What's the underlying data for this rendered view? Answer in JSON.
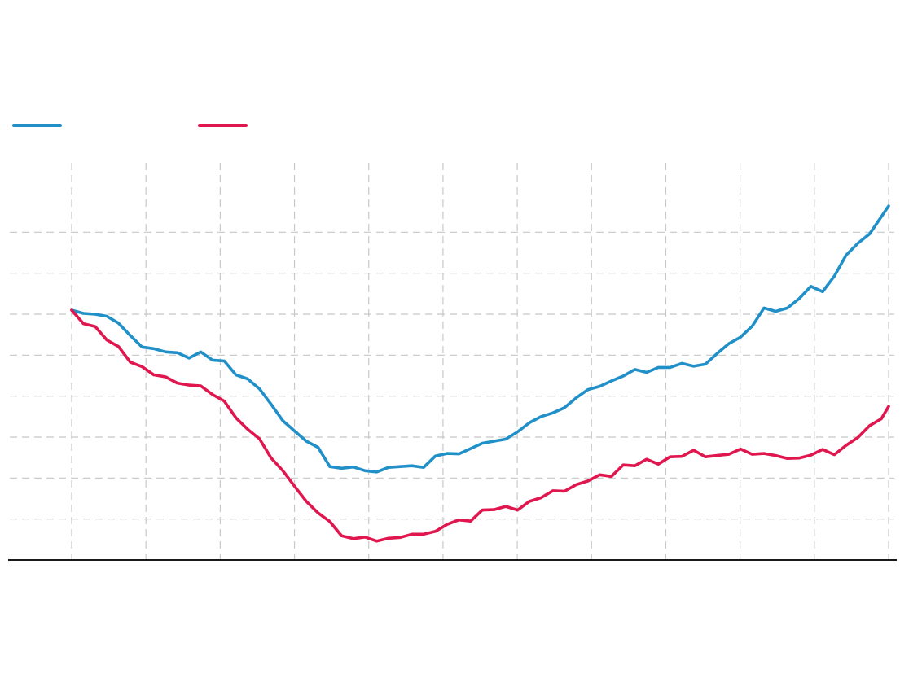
{
  "chart_data": {
    "type": "line",
    "title": "",
    "xlabel": "",
    "ylabel": "",
    "grid": true,
    "legend_position": "top-left",
    "xlim": [
      0,
      11
    ],
    "ylim": [
      10,
      100
    ],
    "x": [
      0.0,
      0.158,
      0.316,
      0.474,
      0.632,
      0.79,
      0.948,
      1.106,
      1.264,
      1.422,
      1.58,
      1.738,
      1.896,
      2.054,
      2.212,
      2.37,
      2.528,
      2.686,
      2.844,
      3.002,
      3.16,
      3.318,
      3.476,
      3.634,
      3.792,
      3.95,
      4.108,
      4.266,
      4.424,
      4.582,
      4.74,
      4.898,
      5.056,
      5.214,
      5.372,
      5.53,
      5.688,
      5.846,
      6.004,
      6.162,
      6.32,
      6.478,
      6.636,
      6.794,
      6.952,
      7.11,
      7.268,
      7.426,
      7.584,
      7.742,
      7.9,
      8.058,
      8.216,
      8.374,
      8.532,
      8.69,
      8.848,
      9.006,
      9.164,
      9.322,
      9.48,
      9.638,
      9.796,
      9.954,
      10.112,
      10.27,
      10.428,
      10.586,
      10.744,
      10.902,
      11.0
    ],
    "series": [
      {
        "color": "#2190c8",
        "values": [
          71,
          70.2,
          70,
          69.5,
          67.8,
          64.8,
          62,
          61.6,
          60.8,
          60.6,
          59.3,
          60.8,
          58.8,
          58.6,
          55.2,
          54.2,
          51.8,
          48,
          44,
          41.5,
          39,
          37.5,
          32.8,
          32.4,
          32.7,
          31.8,
          31.5,
          32.6,
          32.8,
          33,
          32.6,
          35.4,
          36,
          35.9,
          37.2,
          38.5,
          39,
          39.5,
          41.3,
          43.5,
          45,
          45.9,
          47.2,
          49.6,
          51.6,
          52.4,
          53.7,
          54.9,
          56.5,
          55.8,
          57,
          57,
          58,
          57.3,
          57.8,
          60.4,
          62.8,
          64.4,
          67.1,
          71.5,
          70.7,
          71.5,
          73.8,
          76.8,
          75.5,
          79.3,
          84.4,
          87.3,
          89.6,
          93.8,
          96.4
        ]
      },
      {
        "color": "#e0174f",
        "values": [
          71,
          67.7,
          67,
          63.7,
          62.1,
          58.3,
          57.2,
          55.2,
          54.7,
          53.2,
          52.7,
          52.5,
          50.4,
          48.8,
          44.7,
          41.9,
          39.6,
          34.9,
          31.8,
          28,
          24.3,
          21.5,
          19.4,
          15.9,
          15.2,
          15.6,
          14.6,
          15.3,
          15.5,
          16.3,
          16.3,
          17,
          18.7,
          19.8,
          19.5,
          22.2,
          22.3,
          23.1,
          22.2,
          24.3,
          25.2,
          26.9,
          26.8,
          28.4,
          29.3,
          30.8,
          30.4,
          33.2,
          33,
          34.6,
          33.4,
          35.2,
          35.3,
          36.8,
          35.2,
          35.5,
          35.8,
          37.1,
          35.8,
          36,
          35.5,
          34.8,
          34.9,
          35.6,
          37,
          35.7,
          38,
          39.9,
          42.8,
          44.5,
          47.5
        ]
      }
    ]
  }
}
